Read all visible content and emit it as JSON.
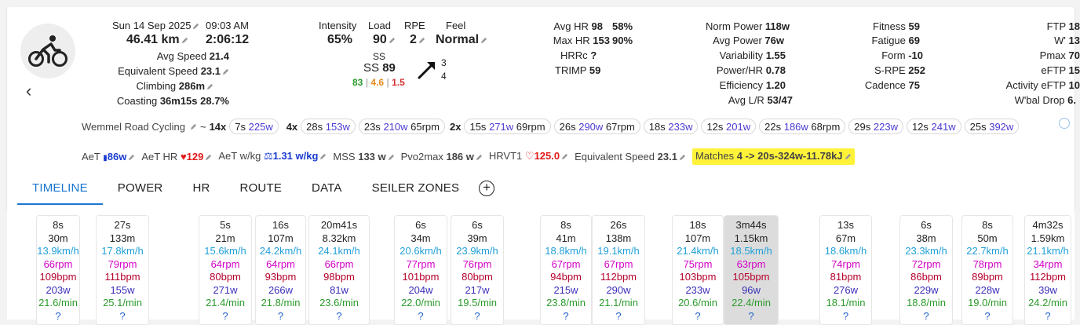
{
  "activity": {
    "date": "Sun 14 Sep 2025",
    "time": "09:03 AM",
    "distance": "46.41 km",
    "duration": "2:06:12",
    "stats": [
      {
        "label": "Avg Speed",
        "value": "21.4"
      },
      {
        "label": "Equivalent Speed",
        "value": "23.1"
      },
      {
        "label": "Climbing",
        "value": "286m"
      },
      {
        "label": "Coasting",
        "value": "36m15s 28.7%"
      }
    ]
  },
  "load": {
    "intensity_label": "Intensity",
    "intensity": "65%",
    "load_label": "Load",
    "load": "90",
    "rpe_label": "RPE",
    "rpe": "2",
    "feel_label": "Feel",
    "feel": "Normal",
    "ss_label": "SS",
    "ss_line": "SS",
    "ss_value": "89",
    "ss_green": "83",
    "ss_orange": "4.6",
    "ss_red": "1.5",
    "arrow_top": "3",
    "arrow_bottom": "4"
  },
  "hr": {
    "avg_label": "Avg HR",
    "avg": "98",
    "avg_pct": "58%",
    "max_label": "Max HR",
    "max": "153",
    "max_pct": "90%",
    "hrrc_label": "HRRc",
    "hrrc": "?",
    "trimp_label": "TRIMP",
    "trimp": "59"
  },
  "power": [
    {
      "label": "Norm Power",
      "value": "118w"
    },
    {
      "label": "Avg Power",
      "value": "76w"
    },
    {
      "label": "Variability",
      "value": "1.55"
    },
    {
      "label": "Power/HR",
      "value": "0.78"
    },
    {
      "label": "Efficiency",
      "value": "1.20"
    },
    {
      "label": "Avg L/R",
      "value": "53/47"
    }
  ],
  "fitness": [
    {
      "label": "Fitness",
      "value": "59"
    },
    {
      "label": "Fatigue",
      "value": "69"
    },
    {
      "label": "Form",
      "value": "-10"
    },
    {
      "label": "S-RPE",
      "value": "252"
    },
    {
      "label": "Cadence",
      "value": "75"
    }
  ],
  "ftp": [
    {
      "label": "FTP",
      "value": "18"
    },
    {
      "label": "W'",
      "value": "13"
    },
    {
      "label": "Pmax",
      "value": "70"
    },
    {
      "label": "eFTP",
      "value": "15"
    },
    {
      "label": "Activity eFTP",
      "value": "10"
    },
    {
      "label": "W'bal Drop",
      "value": "6."
    }
  ],
  "intervals_bar": {
    "name": "Wemmel Road Cycling",
    "tilde": "~",
    "groups": [
      {
        "count": "14x",
        "pills": [
          {
            "d": "7s",
            "w": "225w",
            "rpm": ""
          }
        ]
      },
      {
        "count": "4x",
        "pills": [
          {
            "d": "28s",
            "w": "153w",
            "rpm": ""
          },
          {
            "d": "23s",
            "w": "210w",
            "rpm": "65rpm"
          }
        ]
      },
      {
        "count": "2x",
        "pills": [
          {
            "d": "15s",
            "w": "271w",
            "rpm": "69rpm"
          },
          {
            "d": "26s",
            "w": "290w",
            "rpm": "67rpm"
          },
          {
            "d": "18s",
            "w": "233w",
            "rpm": ""
          },
          {
            "d": "12s",
            "w": "201w",
            "rpm": ""
          },
          {
            "d": "22s",
            "w": "186w",
            "rpm": "68rpm"
          },
          {
            "d": "29s",
            "w": "223w",
            "rpm": ""
          },
          {
            "d": "12s",
            "w": "241w",
            "rpm": ""
          },
          {
            "d": "25s",
            "w": "392w",
            "rpm": ""
          }
        ]
      }
    ]
  },
  "thresholds": {
    "aet_label": "AeT",
    "aet": "86w",
    "aethr_label": "AeT HR",
    "aethr": "129",
    "aetwkg_label": "AeT w/kg",
    "aetwkg": "1.31 w/kg",
    "mss_label": "MSS",
    "mss": "133 w",
    "pvo2_label": "Pvo2max",
    "pvo2": "186 w",
    "hrvt1_label": "HRVT1",
    "hrvt1": "125.0",
    "eqspd_label": "Equivalent Speed",
    "eqspd": "23.1",
    "matches_label": "Matches",
    "matches": "4 -> 20s-324w-11.78kJ"
  },
  "tabs": [
    "TIMELINE",
    "POWER",
    "HR",
    "ROUTE",
    "DATA",
    "SEILER ZONES"
  ],
  "colors": {
    "accent": "#1976d2",
    "highlight": "#fff33a"
  },
  "timeline_intervals": [
    {
      "dur": "8s",
      "dist": "30m",
      "spd": "13.9km/h",
      "rpm": "66rpm",
      "bpm": "109bpm",
      "w": "203w",
      "min": "21.6/min",
      "q": "?"
    },
    {
      "dur": "27s",
      "dist": "133m",
      "spd": "17.8km/h",
      "rpm": "79rpm",
      "bpm": "111bpm",
      "w": "155w",
      "min": "25.1/min",
      "q": "?"
    },
    {
      "dur": "5s",
      "dist": "21m",
      "spd": "15.6km/h",
      "rpm": "64rpm",
      "bpm": "80bpm",
      "w": "271w",
      "min": "21.4/min",
      "q": "?"
    },
    {
      "dur": "16s",
      "dist": "107m",
      "spd": "24.2km/h",
      "rpm": "64rpm",
      "bpm": "93bpm",
      "w": "266w",
      "min": "21.8/min",
      "q": "?"
    },
    {
      "dur": "20m41s",
      "dist": "8.32km",
      "spd": "24.1km/h",
      "rpm": "66rpm",
      "bpm": "98bpm",
      "w": "81w",
      "min": "23.6/min",
      "q": "?"
    },
    {
      "dur": "6s",
      "dist": "34m",
      "spd": "20.6km/h",
      "rpm": "77rpm",
      "bpm": "101bpm",
      "w": "204w",
      "min": "22.0/min",
      "q": "?"
    },
    {
      "dur": "6s",
      "dist": "39m",
      "spd": "23.9km/h",
      "rpm": "76rpm",
      "bpm": "80bpm",
      "w": "217w",
      "min": "19.5/min",
      "q": "?"
    },
    {
      "dur": "8s",
      "dist": "41m",
      "spd": "18.8km/h",
      "rpm": "67rpm",
      "bpm": "94bpm",
      "w": "215w",
      "min": "23.8/min",
      "q": "?"
    },
    {
      "dur": "26s",
      "dist": "138m",
      "spd": "19.1km/h",
      "rpm": "67rpm",
      "bpm": "112bpm",
      "w": "290w",
      "min": "21.1/min",
      "q": "?"
    },
    {
      "dur": "18s",
      "dist": "107m",
      "spd": "21.4km/h",
      "rpm": "75rpm",
      "bpm": "103bpm",
      "w": "233w",
      "min": "20.6/min",
      "q": "?"
    },
    {
      "dur": "3m44s",
      "dist": "1.15km",
      "spd": "18.5km/h",
      "rpm": "63rpm",
      "bpm": "105bpm",
      "w": "96w",
      "min": "22.4/min",
      "q": "?"
    },
    {
      "dur": "13s",
      "dist": "67m",
      "spd": "18.6km/h",
      "rpm": "74rpm",
      "bpm": "81bpm",
      "w": "276w",
      "min": "18.1/min",
      "q": "?"
    },
    {
      "dur": "6s",
      "dist": "38m",
      "spd": "23.3km/h",
      "rpm": "72rpm",
      "bpm": "86bpm",
      "w": "229w",
      "min": "18.8/min",
      "q": "?"
    },
    {
      "dur": "8s",
      "dist": "50m",
      "spd": "22.7km/h",
      "rpm": "78rpm",
      "bpm": "89bpm",
      "w": "228w",
      "min": "19.0/min",
      "q": "?"
    },
    {
      "dur": "4m32s",
      "dist": "1.59km",
      "spd": "21.1km/h",
      "rpm": "34rpm",
      "bpm": "112bpm",
      "w": "39w",
      "min": "24.2/min",
      "q": "?"
    }
  ]
}
